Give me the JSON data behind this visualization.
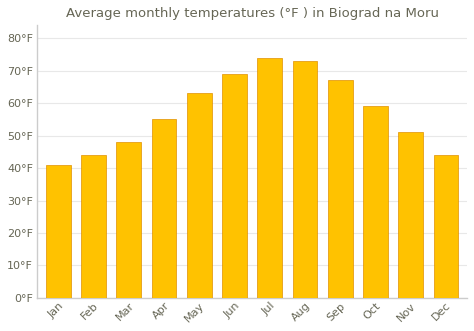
{
  "title": "Average monthly temperatures (°F ) in Biograd na Moru",
  "months": [
    "Jan",
    "Feb",
    "Mar",
    "Apr",
    "May",
    "Jun",
    "Jul",
    "Aug",
    "Sep",
    "Oct",
    "Nov",
    "Dec"
  ],
  "values": [
    41,
    44,
    48,
    55,
    63,
    69,
    74,
    73,
    67,
    59,
    51,
    44
  ],
  "bar_color_top": "#FFC200",
  "bar_color_bottom": "#FFAA00",
  "bar_edge_color": "#E09000",
  "background_color": "#FFFFFF",
  "plot_bg_color": "#FFFFFF",
  "grid_color": "#E8E8E8",
  "ylim": [
    0,
    84
  ],
  "yticks": [
    0,
    10,
    20,
    30,
    40,
    50,
    60,
    70,
    80
  ],
  "title_fontsize": 9.5,
  "tick_fontsize": 8,
  "text_color": "#666655",
  "axis_color": "#CCCCCC",
  "bar_width": 0.7
}
